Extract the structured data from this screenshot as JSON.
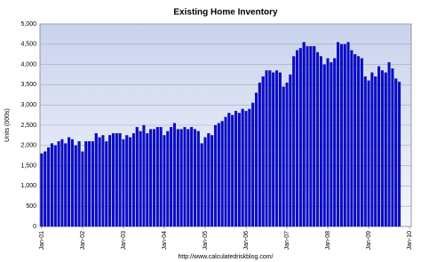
{
  "chart_data": {
    "type": "bar",
    "title": "Existing Home Inventory",
    "y_label": "Units (000s)",
    "source": "http://www.calculatedriskblog.com/",
    "color": "#0a0ad0",
    "grid": true,
    "ylim": [
      0,
      5000
    ],
    "yticks": [
      0,
      500,
      {
        "value": 1000,
        "label": "1,000"
      },
      {
        "value": 1500,
        "label": "1,500"
      },
      {
        "value": 2000,
        "label": "2,000"
      },
      {
        "value": 2500,
        "label": "2,500"
      },
      {
        "value": 3000,
        "label": "3,000"
      },
      {
        "value": 3500,
        "label": "3,500"
      },
      {
        "value": 4000,
        "label": "4,000"
      },
      {
        "value": 4500,
        "label": "4,500"
      },
      {
        "value": 5000,
        "label": "5,000"
      }
    ],
    "categories": [
      "Jan-01",
      null,
      null,
      null,
      null,
      null,
      null,
      null,
      null,
      null,
      null,
      null,
      "Jan-02",
      null,
      null,
      null,
      null,
      null,
      null,
      null,
      null,
      null,
      null,
      null,
      "Jan-03",
      null,
      null,
      null,
      null,
      null,
      null,
      null,
      null,
      null,
      null,
      null,
      "Jan-04",
      null,
      null,
      null,
      null,
      null,
      null,
      null,
      null,
      null,
      null,
      null,
      "Jan-05",
      null,
      null,
      null,
      null,
      null,
      null,
      null,
      null,
      null,
      null,
      null,
      "Jan-06",
      null,
      null,
      null,
      null,
      null,
      null,
      null,
      null,
      null,
      null,
      null,
      "Jan-07",
      null,
      null,
      null,
      null,
      null,
      null,
      null,
      null,
      null,
      null,
      null,
      "Jan-08",
      null,
      null,
      null,
      null,
      null,
      null,
      null,
      null,
      null,
      null,
      null,
      "Jan-09",
      null,
      null,
      null,
      null,
      null,
      null,
      null,
      null,
      null,
      null,
      null,
      "Jan-10"
    ],
    "values": [
      1800,
      1850,
      1950,
      2050,
      2000,
      2100,
      2150,
      2050,
      2200,
      2150,
      2000,
      2100,
      1850,
      2100,
      2100,
      2100,
      2300,
      2200,
      2250,
      2100,
      2250,
      2300,
      2300,
      2300,
      2150,
      2250,
      2200,
      2300,
      2450,
      2350,
      2500,
      2300,
      2400,
      2400,
      2450,
      2450,
      2250,
      2350,
      2450,
      2550,
      2400,
      2400,
      2450,
      2400,
      2450,
      2400,
      2350,
      2050,
      2200,
      2300,
      2250,
      2500,
      2550,
      2600,
      2700,
      2800,
      2750,
      2850,
      2800,
      2900,
      2850,
      2900,
      3050,
      3300,
      3550,
      3700,
      3850,
      3850,
      3800,
      3850,
      3800,
      3450,
      3550,
      3750,
      4200,
      4350,
      4400,
      4550,
      4450,
      4450,
      4450,
      4300,
      4200,
      4000,
      4150,
      4050,
      4150,
      4550,
      4500,
      4500,
      4550,
      4350,
      4250,
      4200,
      4150,
      3700,
      3600,
      3800,
      3700,
      3950,
      3850,
      3800,
      4050,
      3900,
      3650,
      3570,
      null,
      null,
      null
    ]
  }
}
